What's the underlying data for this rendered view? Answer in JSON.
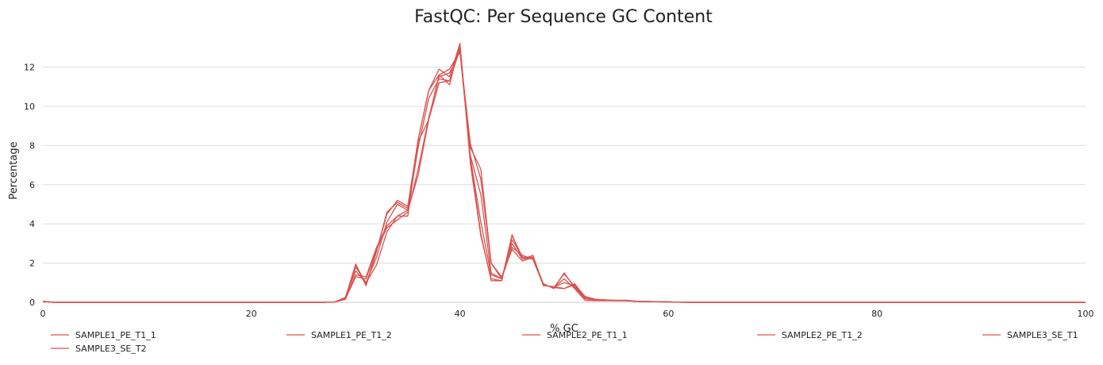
{
  "chart_data": {
    "type": "line",
    "title": "FastQC: Per Sequence GC Content",
    "xlabel": "% GC",
    "ylabel": "Percentage",
    "xlim": [
      0,
      100
    ],
    "ylim": [
      0,
      13.6
    ],
    "x_ticks": [
      0,
      20,
      40,
      60,
      80,
      100
    ],
    "y_ticks": [
      0,
      2,
      4,
      6,
      8,
      10,
      12
    ],
    "grid": "horizontal",
    "legend_position": "bottom",
    "line_color": "#d9534f",
    "x": [
      0,
      1,
      2,
      3,
      4,
      5,
      6,
      7,
      8,
      9,
      10,
      11,
      12,
      13,
      14,
      15,
      16,
      17,
      18,
      19,
      20,
      21,
      22,
      23,
      24,
      25,
      26,
      27,
      28,
      29,
      30,
      31,
      32,
      33,
      34,
      35,
      36,
      37,
      38,
      39,
      40,
      41,
      42,
      43,
      44,
      45,
      46,
      47,
      48,
      49,
      50,
      51,
      52,
      53,
      54,
      55,
      56,
      57,
      58,
      59,
      60,
      61,
      62,
      63,
      64,
      65,
      66,
      67,
      68,
      69,
      70,
      71,
      72,
      73,
      74,
      75,
      76,
      77,
      78,
      79,
      80,
      81,
      82,
      83,
      84,
      85,
      86,
      87,
      88,
      89,
      90,
      91,
      92,
      93,
      94,
      95,
      96,
      97,
      98,
      99,
      100
    ],
    "series": [
      {
        "name": "SAMPLE1_PE_T1_1",
        "values": [
          0.05,
          0,
          0,
          0,
          0,
          0,
          0,
          0,
          0,
          0,
          0,
          0,
          0,
          0,
          0,
          0,
          0,
          0,
          0,
          0,
          0,
          0,
          0,
          0,
          0,
          0,
          0,
          0,
          0.02,
          0.2,
          1.95,
          0.9,
          2.6,
          4.5,
          5.2,
          4.9,
          8.3,
          10.8,
          11.9,
          11.5,
          13.2,
          7.3,
          3.5,
          1.1,
          1.1,
          3.4,
          2.3,
          2.3,
          0.9,
          0.75,
          0.7,
          0.9,
          0.3,
          0.15,
          0.12,
          0.1,
          0.1,
          0.05,
          0.04,
          0.03,
          0.02,
          0.01,
          0,
          0,
          0,
          0,
          0,
          0,
          0,
          0,
          0,
          0,
          0,
          0,
          0,
          0,
          0,
          0,
          0,
          0,
          0,
          0,
          0,
          0,
          0,
          0,
          0,
          0,
          0,
          0,
          0,
          0,
          0,
          0,
          0,
          0,
          0,
          0,
          0,
          0,
          0
        ]
      },
      {
        "name": "SAMPLE1_PE_T1_2",
        "values": [
          0.05,
          0,
          0,
          0,
          0,
          0,
          0,
          0,
          0,
          0,
          0,
          0,
          0,
          0,
          0,
          0,
          0,
          0,
          0,
          0,
          0,
          0,
          0,
          0,
          0,
          0,
          0,
          0,
          0.02,
          0.15,
          1.4,
          1.3,
          2.8,
          3.9,
          4.4,
          4.7,
          6.5,
          9.3,
          11.2,
          11.3,
          12.9,
          7.9,
          6.8,
          2,
          1.2,
          2.8,
          2.4,
          2.2,
          0.9,
          0.75,
          1.45,
          0.8,
          0.2,
          0.12,
          0.1,
          0.08,
          0.08,
          0.05,
          0.04,
          0.03,
          0.02,
          0.01,
          0,
          0,
          0,
          0,
          0,
          0,
          0,
          0,
          0,
          0,
          0,
          0,
          0,
          0,
          0,
          0,
          0,
          0,
          0,
          0,
          0,
          0,
          0,
          0,
          0,
          0,
          0,
          0,
          0,
          0,
          0,
          0,
          0,
          0,
          0,
          0,
          0,
          0,
          0
        ]
      },
      {
        "name": "SAMPLE2_PE_T1_1",
        "values": [
          0.05,
          0,
          0,
          0,
          0,
          0,
          0,
          0,
          0,
          0,
          0,
          0,
          0,
          0,
          0,
          0,
          0,
          0,
          0,
          0,
          0,
          0,
          0,
          0,
          0,
          0,
          0,
          0,
          0.02,
          0.2,
          1.9,
          0.85,
          2.6,
          4.6,
          5.1,
          4.8,
          8.3,
          10.8,
          11.6,
          11.1,
          13.2,
          7.1,
          3.4,
          1.2,
          1.1,
          3.45,
          2.2,
          2.4,
          0.85,
          0.8,
          0.7,
          0.95,
          0.28,
          0.15,
          0.12,
          0.1,
          0.1,
          0.05,
          0.04,
          0.03,
          0.02,
          0.01,
          0,
          0,
          0,
          0,
          0,
          0,
          0,
          0,
          0,
          0,
          0,
          0,
          0,
          0,
          0,
          0,
          0,
          0,
          0,
          0,
          0,
          0,
          0,
          0,
          0,
          0,
          0,
          0,
          0,
          0,
          0,
          0,
          0,
          0,
          0,
          0,
          0,
          0,
          0
        ]
      },
      {
        "name": "SAMPLE2_PE_T1_2",
        "values": [
          0.05,
          0,
          0,
          0,
          0,
          0,
          0,
          0,
          0,
          0,
          0,
          0,
          0,
          0,
          0,
          0,
          0,
          0,
          0,
          0,
          0,
          0,
          0,
          0,
          0,
          0,
          0,
          0,
          0.02,
          0.15,
          1.3,
          1.2,
          2.7,
          3.8,
          4.2,
          4.6,
          6.8,
          9.4,
          11.5,
          11.7,
          12.8,
          8.1,
          6.3,
          2,
          1.3,
          2.7,
          2.1,
          2.3,
          0.95,
          0.7,
          1.5,
          0.75,
          0.18,
          0.12,
          0.1,
          0.08,
          0.08,
          0.05,
          0.04,
          0.03,
          0.02,
          0.01,
          0,
          0,
          0,
          0,
          0,
          0,
          0,
          0,
          0,
          0,
          0,
          0,
          0,
          0,
          0,
          0,
          0,
          0,
          0,
          0,
          0,
          0,
          0,
          0,
          0,
          0,
          0,
          0,
          0,
          0,
          0,
          0,
          0,
          0,
          0,
          0,
          0,
          0,
          0
        ]
      },
      {
        "name": "SAMPLE3_SE_T1",
        "values": [
          0.05,
          0,
          0,
          0,
          0,
          0,
          0,
          0,
          0,
          0,
          0,
          0,
          0,
          0,
          0,
          0,
          0,
          0,
          0,
          0,
          0,
          0,
          0,
          0,
          0,
          0,
          0,
          0,
          0.02,
          0.25,
          1.6,
          1,
          1.9,
          3.6,
          4.4,
          4.4,
          8.2,
          9.3,
          11.6,
          11.9,
          12.8,
          7.5,
          5.5,
          1.5,
          1.2,
          3,
          2.2,
          2.3,
          0.9,
          0.75,
          1.2,
          0.7,
          0.1,
          0.08,
          0.08,
          0.08,
          0.08,
          0.05,
          0.04,
          0.03,
          0.02,
          0.01,
          0,
          0,
          0,
          0,
          0,
          0,
          0,
          0,
          0,
          0,
          0,
          0,
          0,
          0,
          0,
          0,
          0,
          0,
          0,
          0,
          0,
          0,
          0,
          0,
          0,
          0,
          0,
          0,
          0,
          0,
          0,
          0,
          0,
          0,
          0,
          0,
          0,
          0,
          0
        ]
      },
      {
        "name": "SAMPLE3_SE_T2",
        "values": [
          0.05,
          0,
          0,
          0,
          0,
          0,
          0,
          0,
          0,
          0,
          0,
          0,
          0,
          0,
          0,
          0,
          0,
          0,
          0,
          0,
          0,
          0,
          0,
          0,
          0,
          0,
          0,
          0,
          0.02,
          0.2,
          1.8,
          1,
          2.3,
          4.1,
          5,
          4.7,
          7.9,
          10.4,
          11.4,
          11.3,
          13,
          7.4,
          4.1,
          1.4,
          1.2,
          3.2,
          2.3,
          2.2,
          0.88,
          0.78,
          1,
          0.85,
          0.22,
          0.14,
          0.11,
          0.09,
          0.09,
          0.05,
          0.04,
          0.03,
          0.02,
          0.01,
          0,
          0,
          0,
          0,
          0,
          0,
          0,
          0,
          0,
          0,
          0,
          0,
          0,
          0,
          0,
          0,
          0,
          0,
          0,
          0,
          0,
          0,
          0,
          0,
          0,
          0,
          0,
          0,
          0,
          0,
          0,
          0,
          0,
          0,
          0,
          0,
          0,
          0,
          0
        ]
      }
    ]
  }
}
